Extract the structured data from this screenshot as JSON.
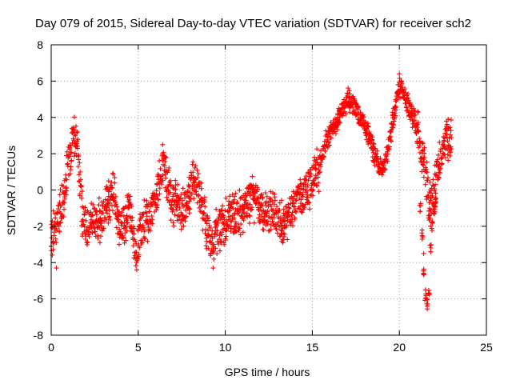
{
  "chart_data": {
    "type": "scatter",
    "title": "Day 079 of 2015, Sidereal Day-to-day VTEC variation (SDTVAR) for receiver sch2",
    "xlabel": "GPS time / hours",
    "ylabel": "SDTVAR / TECUs",
    "xlim": [
      0,
      25
    ],
    "ylim": [
      -8,
      8
    ],
    "xticks": [
      0,
      5,
      10,
      15,
      20,
      25
    ],
    "yticks": [
      -8,
      -6,
      -4,
      -2,
      0,
      2,
      4,
      6,
      8
    ],
    "grid": true,
    "marker": "+",
    "color": "#ff0000",
    "series": [
      {
        "name": "SDTVAR",
        "trend": [
          [
            0.0,
            -2.2
          ],
          [
            0.2,
            -2.6
          ],
          [
            0.4,
            -1.6
          ],
          [
            0.6,
            -1.0
          ],
          [
            0.8,
            -0.2
          ],
          [
            0.9,
            1.4
          ],
          [
            1.1,
            1.8
          ],
          [
            1.3,
            2.8
          ],
          [
            1.5,
            2.4
          ],
          [
            1.6,
            1.0
          ],
          [
            1.8,
            -1.5
          ],
          [
            2.0,
            -2.2
          ],
          [
            2.3,
            -1.5
          ],
          [
            2.6,
            -1.8
          ],
          [
            3.0,
            -1.5
          ],
          [
            3.4,
            -0.5
          ],
          [
            3.6,
            0.3
          ],
          [
            3.8,
            -1.8
          ],
          [
            4.0,
            -2.0
          ],
          [
            4.3,
            -1.5
          ],
          [
            4.5,
            -1.0
          ],
          [
            4.7,
            -2.0
          ],
          [
            4.9,
            -3.8
          ],
          [
            5.1,
            -2.3
          ],
          [
            5.4,
            -1.8
          ],
          [
            5.7,
            -1.5
          ],
          [
            6.0,
            -0.5
          ],
          [
            6.3,
            0.8
          ],
          [
            6.5,
            1.4
          ],
          [
            6.7,
            0.3
          ],
          [
            6.9,
            -0.5
          ],
          [
            7.2,
            -0.8
          ],
          [
            7.5,
            -1.4
          ],
          [
            7.8,
            -0.5
          ],
          [
            8.1,
            0.3
          ],
          [
            8.3,
            0.5
          ],
          [
            8.6,
            -0.5
          ],
          [
            8.9,
            -1.8
          ],
          [
            9.1,
            -2.8
          ],
          [
            9.4,
            -2.5
          ],
          [
            9.7,
            -2.0
          ],
          [
            10.0,
            -1.8
          ],
          [
            10.5,
            -1.5
          ],
          [
            11.0,
            -1.2
          ],
          [
            11.5,
            -0.4
          ],
          [
            11.8,
            -0.6
          ],
          [
            12.1,
            -1.2
          ],
          [
            12.4,
            -1.6
          ],
          [
            12.7,
            -1.0
          ],
          [
            13.0,
            -1.5
          ],
          [
            13.3,
            -2.0
          ],
          [
            13.6,
            -1.5
          ],
          [
            14.0,
            -0.8
          ],
          [
            14.5,
            -0.3
          ],
          [
            14.9,
            0.3
          ],
          [
            15.2,
            0.8
          ],
          [
            15.5,
            1.5
          ],
          [
            15.8,
            2.8
          ],
          [
            16.2,
            3.5
          ],
          [
            16.6,
            4.2
          ],
          [
            17.0,
            5.0
          ],
          [
            17.3,
            4.8
          ],
          [
            17.6,
            4.2
          ],
          [
            17.9,
            3.8
          ],
          [
            18.2,
            3.0
          ],
          [
            18.5,
            2.2
          ],
          [
            18.8,
            1.4
          ],
          [
            19.1,
            1.2
          ],
          [
            19.4,
            2.5
          ],
          [
            19.7,
            4.2
          ],
          [
            20.0,
            5.8
          ],
          [
            20.3,
            5.2
          ],
          [
            20.6,
            4.4
          ],
          [
            20.9,
            3.8
          ],
          [
            21.1,
            3.0
          ],
          [
            21.3,
            1.8
          ],
          [
            21.5,
            1.0
          ],
          [
            21.7,
            -0.8
          ],
          [
            21.9,
            -0.5
          ],
          [
            22.1,
            0.5
          ],
          [
            22.3,
            1.4
          ],
          [
            22.5,
            2.2
          ],
          [
            22.8,
            2.8
          ],
          [
            23.0,
            3.0
          ]
        ],
        "spikes": [
          [
            0.3,
            -4.3
          ],
          [
            1.2,
            3.4
          ],
          [
            6.4,
            2.5
          ],
          [
            9.3,
            -4.3
          ],
          [
            20.0,
            6.4
          ],
          [
            21.6,
            -6.4
          ],
          [
            21.5,
            -5.5
          ],
          [
            21.4,
            -3.5
          ],
          [
            22.8,
            3.9
          ],
          [
            4.9,
            -4.0
          ],
          [
            0.0,
            -3.1
          ],
          [
            1.6,
            0.5
          ],
          [
            3.3,
            0.5
          ],
          [
            6.6,
            1.8
          ]
        ],
        "dip": [
          [
            21.2,
            -1.0
          ],
          [
            21.3,
            -2.5
          ],
          [
            21.4,
            -4.5
          ],
          [
            21.5,
            -6.0
          ],
          [
            21.6,
            -6.3
          ],
          [
            21.7,
            -5.5
          ],
          [
            21.8,
            -3.2
          ],
          [
            21.9,
            -2.0
          ],
          [
            22.0,
            -1.2
          ],
          [
            22.1,
            -0.8
          ]
        ]
      }
    ]
  }
}
